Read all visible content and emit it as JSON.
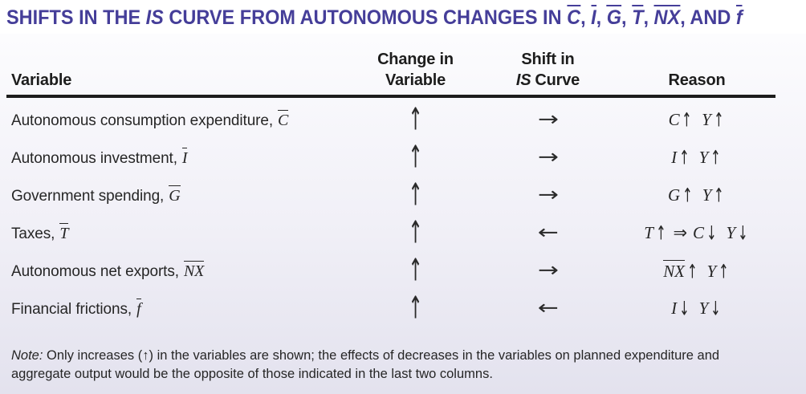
{
  "colors": {
    "title": "#453e99",
    "ink": "#242424",
    "rule": "#1d1d1d",
    "bgtop": "#fcfcfe",
    "bgbot": "#e3e2ee"
  },
  "title": {
    "segments": [
      "SHIFTS IN THE ",
      "IS",
      " CURVE FROM AUTONOMOUS CHANGES IN ",
      "C",
      ", ",
      "I",
      ", ",
      "G",
      ", ",
      "T",
      ", ",
      "NX",
      ", AND ",
      "f"
    ]
  },
  "header": {
    "variable": "Variable",
    "change_line1": "Change in",
    "change_line2": "Variable",
    "shift_line1": "Shift in",
    "shift_is": "IS",
    "shift_curve": "Curve",
    "reason": "Reason"
  },
  "rows": [
    {
      "label": "Autonomous consumption expenditure,",
      "symbol": "C",
      "change": "↑",
      "shift": "→",
      "reason": {
        "v1": "C",
        "a1": "↑",
        "v2": "Y",
        "a2": "↑"
      }
    },
    {
      "label": "Autonomous investment,",
      "symbol": "I",
      "change": "↑",
      "shift": "→",
      "reason": {
        "v1": "I",
        "a1": "↑",
        "v2": "Y",
        "a2": "↑"
      }
    },
    {
      "label": "Government spending,",
      "symbol": "G",
      "change": "↑",
      "shift": "→",
      "reason": {
        "v1": "G",
        "a1": "↑",
        "v2": "Y",
        "a2": "↑"
      }
    },
    {
      "label": "Taxes,",
      "symbol": "T",
      "change": "↑",
      "shift": "←",
      "reason": {
        "v0": "T",
        "a0": "↑",
        "imp": "⇒",
        "v1": "C",
        "a1": "↓",
        "v2": "Y",
        "a2": "↓"
      }
    },
    {
      "label": "Autonomous net exports,",
      "symbol": "NX",
      "change": "↑",
      "shift": "→",
      "reason": {
        "v1": "NX",
        "a1": "↑",
        "v2": "Y",
        "a2": "↑"
      }
    },
    {
      "label": "Financial frictions,",
      "symbol": "f",
      "change": "↑",
      "shift": "←",
      "reason": {
        "v1": "I",
        "a1": "↓",
        "v2": "Y",
        "a2": "↓"
      }
    }
  ],
  "note": {
    "label": "Note:",
    "text": "Only increases (↑) in the variables are shown; the effects of decreases in the variables on planned expenditure and aggregate output would be the opposite of those indicated in the last two columns."
  }
}
